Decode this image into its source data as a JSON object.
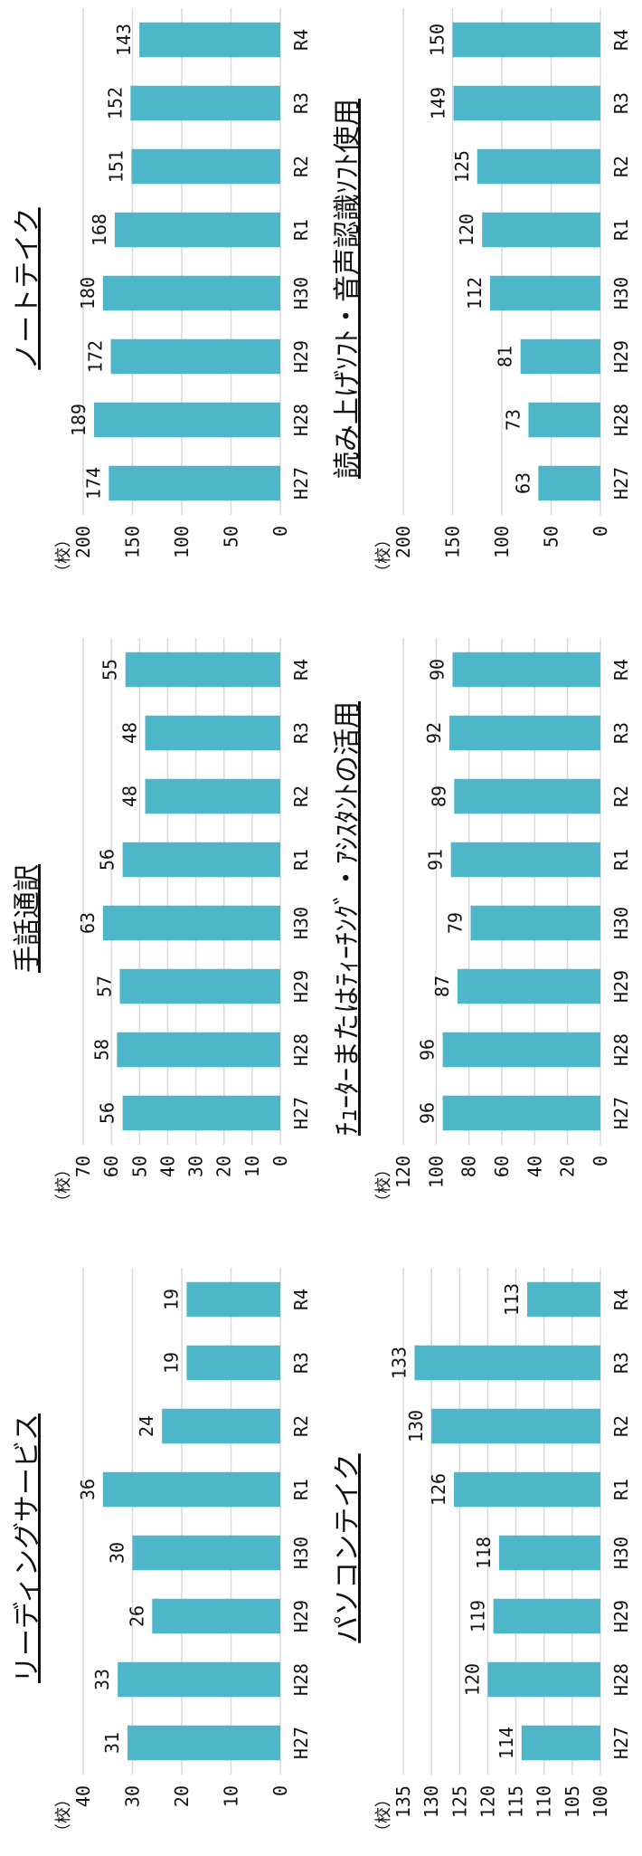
{
  "chart_data": [
    {
      "type": "bar",
      "title": "リーディングサービス",
      "unit": "（校）",
      "categories": [
        "H27",
        "H28",
        "H29",
        "H30",
        "R1",
        "R2",
        "R3",
        "R4"
      ],
      "values": [
        31,
        33,
        26,
        30,
        36,
        24,
        19,
        19
      ],
      "yticks": [
        "0",
        "10",
        "20",
        "30",
        "40"
      ],
      "ylim": [
        0,
        40
      ],
      "color": "#4db6c8",
      "grid": true
    },
    {
      "type": "bar",
      "title": "パソコンテイク",
      "unit": "（校）",
      "categories": [
        "H27",
        "H28",
        "H29",
        "H30",
        "R1",
        "R2",
        "R3",
        "R4"
      ],
      "values": [
        114,
        120,
        119,
        118,
        126,
        130,
        133,
        113
      ],
      "yticks": [
        "100",
        "105",
        "110",
        "115",
        "120",
        "125",
        "130",
        "135"
      ],
      "ylim": [
        100,
        135
      ],
      "color": "#4db6c8",
      "grid": true
    },
    {
      "type": "bar",
      "title": "手話通訳",
      "unit": "（校）",
      "categories": [
        "H27",
        "H28",
        "H29",
        "H30",
        "R1",
        "R2",
        "R3",
        "R4"
      ],
      "values": [
        56,
        58,
        57,
        63,
        56,
        48,
        48,
        55
      ],
      "yticks": [
        "0",
        "10",
        "20",
        "30",
        "40",
        "50",
        "60",
        "70"
      ],
      "ylim": [
        0,
        70
      ],
      "color": "#4db6c8",
      "grid": true
    },
    {
      "type": "bar",
      "title": "ﾁｭｰﾀｰまたはﾃｨｰﾁﾝｸﾞ・ｱｼｽﾀﾝﾄの活用",
      "unit": "（校）",
      "categories": [
        "H27",
        "H28",
        "H29",
        "H30",
        "R1",
        "R2",
        "R3",
        "R4"
      ],
      "values": [
        96,
        96,
        87,
        79,
        91,
        89,
        92,
        90
      ],
      "yticks": [
        "0",
        "20",
        "40",
        "60",
        "80",
        "100",
        "120"
      ],
      "ylim": [
        0,
        120
      ],
      "color": "#4db6c8",
      "grid": true
    },
    {
      "type": "bar",
      "title": "ノートテイク",
      "unit": "（校）",
      "categories": [
        "H27",
        "H28",
        "H29",
        "H30",
        "R1",
        "R2",
        "R3",
        "R4"
      ],
      "values": [
        174,
        189,
        172,
        180,
        168,
        151,
        152,
        143
      ],
      "yticks": [
        "0",
        "50",
        "100",
        "150",
        "200"
      ],
      "ylim": [
        0,
        200
      ],
      "color": "#4db6c8",
      "grid": true
    },
    {
      "type": "bar",
      "title": "読み上げｿﾌﾄ・音声認識ｿﾌﾄ使用",
      "unit": "（校）",
      "categories": [
        "H27",
        "H28",
        "H29",
        "H30",
        "R1",
        "R2",
        "R3",
        "R4"
      ],
      "values": [
        63,
        73,
        81,
        112,
        120,
        125,
        149,
        150
      ],
      "yticks": [
        "0",
        "50",
        "100",
        "150",
        "200"
      ],
      "ylim": [
        0,
        200
      ],
      "color": "#4db6c8",
      "grid": true
    }
  ]
}
